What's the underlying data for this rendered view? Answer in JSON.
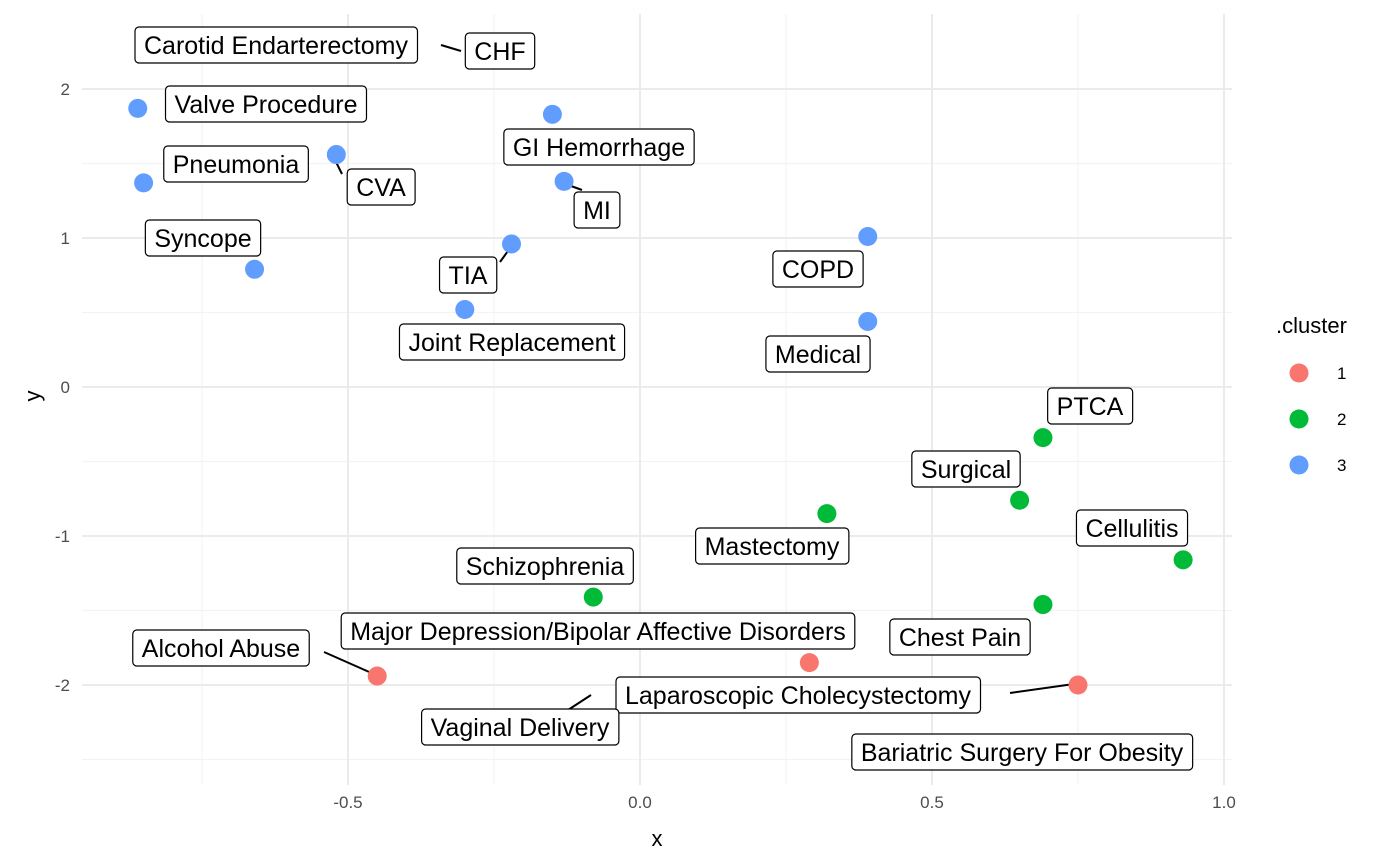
{
  "chart_data": {
    "type": "scatter",
    "xlabel": "x",
    "ylabel": "y",
    "xlim": [
      -0.95,
      1.02
    ],
    "ylim": [
      -2.68,
      2.5
    ],
    "x_ticks": [
      -0.5,
      0.0,
      0.5,
      1.0
    ],
    "x_tick_labels": [
      "-0.5",
      "0.0",
      "0.5",
      "1.0"
    ],
    "y_ticks": [
      -2,
      -1,
      0,
      1,
      2
    ],
    "y_tick_labels": [
      "-2",
      "-1",
      "0",
      "1",
      "2"
    ],
    "grid": true,
    "legend": {
      "title": ".cluster",
      "placement": "right",
      "entries": [
        {
          "label": "1",
          "color": "#F8766D"
        },
        {
          "label": "2",
          "color": "#00BA38"
        },
        {
          "label": "3",
          "color": "#619CFF"
        }
      ]
    },
    "points": [
      {
        "label": "CHF",
        "x": -0.53,
        "y": 2.33,
        "cluster": "3",
        "hidden": true
      },
      {
        "label": "Carotid Endarterectomy",
        "x": -0.53,
        "y": 2.33,
        "cluster": "3",
        "hidden": true
      },
      {
        "label": "Valve Procedure",
        "x": -0.86,
        "y": 1.87,
        "cluster": "3"
      },
      {
        "label": "Pneumonia",
        "x": -0.85,
        "y": 1.37,
        "cluster": "3"
      },
      {
        "label": "CVA",
        "x": -0.52,
        "y": 1.56,
        "cluster": "3"
      },
      {
        "label": "GI Hemorrhage",
        "x": -0.15,
        "y": 1.83,
        "cluster": "3"
      },
      {
        "label": "MI",
        "x": -0.13,
        "y": 1.38,
        "cluster": "3"
      },
      {
        "label": "Syncope",
        "x": -0.66,
        "y": 0.79,
        "cluster": "3"
      },
      {
        "label": "TIA",
        "x": -0.22,
        "y": 0.96,
        "cluster": "3"
      },
      {
        "label": "Joint Replacement",
        "x": -0.3,
        "y": 0.52,
        "cluster": "3"
      },
      {
        "label": "COPD",
        "x": 0.39,
        "y": 1.01,
        "cluster": "3"
      },
      {
        "label": "Medical",
        "x": 0.39,
        "y": 0.44,
        "cluster": "3"
      },
      {
        "label": "PTCA",
        "x": 0.69,
        "y": -0.34,
        "cluster": "2"
      },
      {
        "label": "Surgical",
        "x": 0.65,
        "y": -0.76,
        "cluster": "2"
      },
      {
        "label": "Mastectomy",
        "x": 0.32,
        "y": -0.85,
        "cluster": "2"
      },
      {
        "label": "Cellulitis",
        "x": 0.93,
        "y": -1.16,
        "cluster": "2"
      },
      {
        "label": "Schizophrenia",
        "x": -0.08,
        "y": -1.41,
        "cluster": "2"
      },
      {
        "label": "Chest Pain",
        "x": 0.69,
        "y": -1.46,
        "cluster": "2"
      },
      {
        "label": "Alcohol Abuse",
        "x": -0.45,
        "y": -1.94,
        "cluster": "1"
      },
      {
        "label": "Major Depression/Bipolar Affective Disorders",
        "x": 0.29,
        "y": -1.85,
        "cluster": "1"
      },
      {
        "label": "Laparoscopic Cholecystectomy",
        "x": 0.75,
        "y": -2.0,
        "cluster": "1"
      },
      {
        "label": "Vaginal Delivery",
        "x": -0.08,
        "y": -2.06,
        "cluster": "1",
        "hidden": true
      },
      {
        "label": "Bariatric Surgery For Obesity",
        "x": 0.75,
        "y": -2.0,
        "cluster": "1",
        "hidden": true
      }
    ]
  }
}
